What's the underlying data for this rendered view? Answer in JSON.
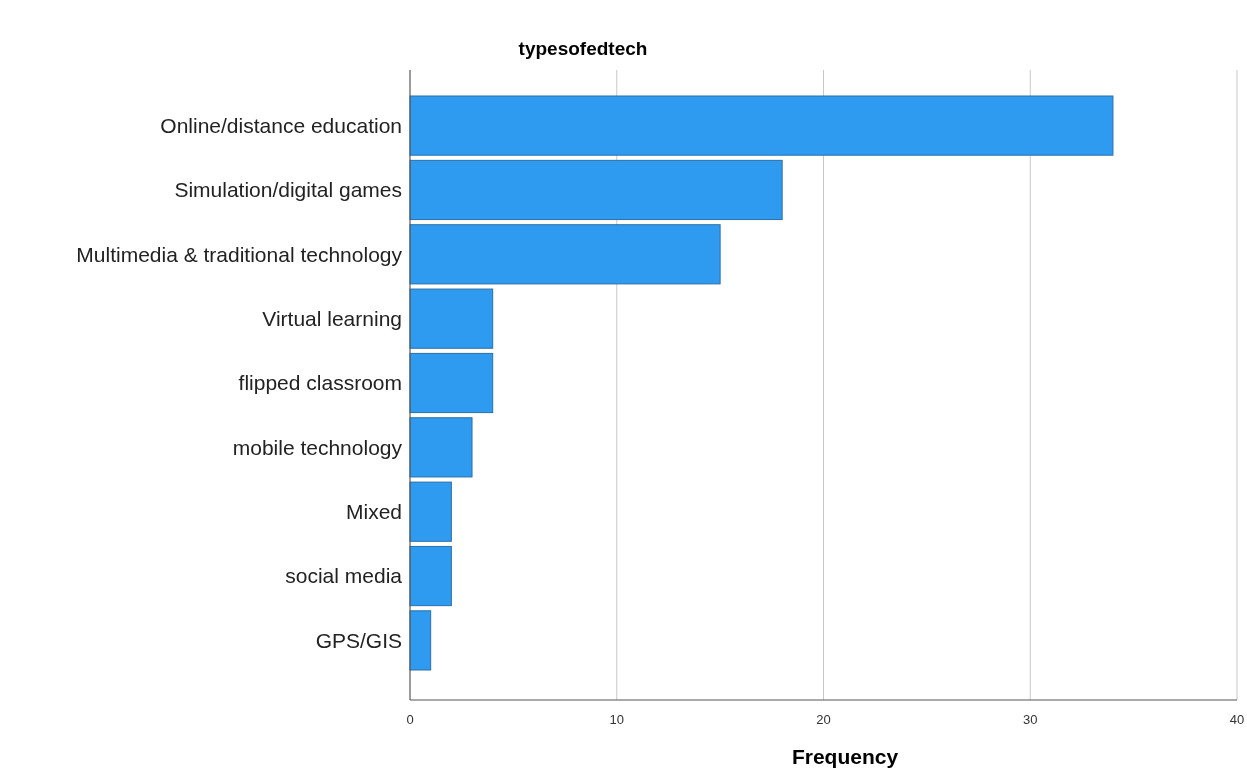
{
  "chart_data": {
    "type": "bar",
    "orientation": "horizontal",
    "title": "typesofedtech",
    "xlabel": "Frequency",
    "categories": [
      "Online/distance education",
      "Simulation/digital games",
      "Multimedia & traditional technology",
      "Virtual learning",
      "flipped classroom",
      "mobile technology",
      "Mixed",
      "social media",
      "GPS/GIS"
    ],
    "values": [
      34,
      18,
      15,
      4,
      4,
      3,
      2,
      2,
      1
    ],
    "color": "#2e9bf0",
    "xlim": [
      0,
      40
    ],
    "xticks": [
      0,
      10,
      20,
      30,
      40
    ],
    "grid": "x"
  }
}
